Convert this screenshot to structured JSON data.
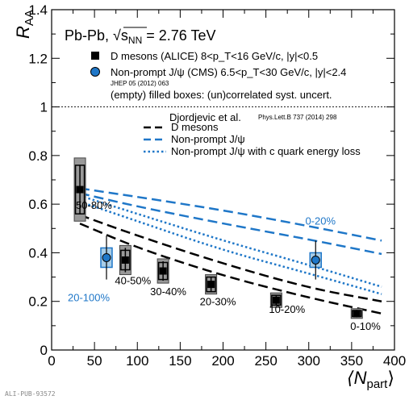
{
  "chart_data": {
    "type": "scatter",
    "xlabel_main": "⟨N",
    "xlabel_sub": "part",
    "xlabel_close": "⟩",
    "ylabel_main": "R",
    "ylabel_sub": "AA",
    "xlim": [
      0,
      400
    ],
    "ylim": [
      0,
      1.4
    ],
    "x_ticks": [
      0,
      50,
      100,
      150,
      200,
      250,
      300,
      350,
      400
    ],
    "y_ticks": [
      0,
      0.2,
      0.4,
      0.6,
      0.8,
      1,
      1.2,
      1.4
    ],
    "reference_line": 1,
    "system_label": "Pb-Pb, √s",
    "system_label_sub": "NN",
    "system_label_tail": " = 2.76 TeV",
    "legend_top": [
      {
        "marker": "square",
        "color": "#000000",
        "label": "D mesons (ALICE) 8<p_T<16 GeV/c, |y|<0.5"
      },
      {
        "marker": "circle",
        "color": "#1f77c8",
        "label": "Non-prompt J/ψ (CMS) 6.5<p_T<30 GeV/c, |y|<2.4"
      }
    ],
    "jhep_ref": "JHEP 05 (2012) 063",
    "boxes_note": "(empty) filled boxes: (un)correlated syst. uncert.",
    "model_title": "Djordjevic et al.",
    "model_ref": "Phys.Lett.B 737 (2014) 298",
    "legend_models": [
      {
        "style": "dashed",
        "color": "#000000",
        "label": "D mesons"
      },
      {
        "style": "dashed",
        "color": "#1f77c8",
        "label": "Non-prompt J/ψ"
      },
      {
        "style": "dotted",
        "color": "#1f77c8",
        "label": "Non-prompt J/ψ with c quark energy loss"
      }
    ],
    "series": [
      {
        "name": "D mesons (ALICE)",
        "color": "#000000",
        "points": [
          {
            "x": 33,
            "y": 0.66,
            "stat": 0.1,
            "syst": 0.1,
            "corr": 0.13,
            "label": "50-80%"
          },
          {
            "x": 86,
            "y": 0.37,
            "stat": 0.05,
            "syst": 0.04,
            "corr": 0.06,
            "label": "40-50%"
          },
          {
            "x": 130,
            "y": 0.325,
            "stat": 0.04,
            "syst": 0.035,
            "corr": 0.05,
            "label": "30-40%"
          },
          {
            "x": 186,
            "y": 0.27,
            "stat": 0.03,
            "syst": 0.03,
            "corr": 0.04,
            "label": "20-30%"
          },
          {
            "x": 262,
            "y": 0.205,
            "stat": 0.02,
            "syst": 0.02,
            "corr": 0.03,
            "label": "10-20%"
          },
          {
            "x": 356,
            "y": 0.15,
            "stat": 0.015,
            "syst": 0.012,
            "corr": 0.02,
            "label": "0-10%"
          }
        ]
      },
      {
        "name": "Non-prompt J/ψ (CMS)",
        "color": "#1f77c8",
        "points": [
          {
            "x": 64,
            "y": 0.38,
            "stat": 0.09,
            "syst": 0.04,
            "label": "20-100%"
          },
          {
            "x": 308,
            "y": 0.37,
            "stat": 0.08,
            "syst": 0.03,
            "label": "0-20%"
          }
        ]
      }
    ],
    "model_curves": [
      {
        "name": "D mesons",
        "style": "dashed",
        "color": "#000000",
        "upper": [
          [
            33,
            0.555
          ],
          [
            100,
            0.47
          ],
          [
            200,
            0.355
          ],
          [
            300,
            0.255
          ],
          [
            385,
            0.2
          ]
        ],
        "lower": [
          [
            33,
            0.52
          ],
          [
            100,
            0.42
          ],
          [
            200,
            0.305
          ],
          [
            300,
            0.215
          ],
          [
            385,
            0.15
          ]
        ]
      },
      {
        "name": "Non-prompt J/ψ",
        "style": "dashed",
        "color": "#1f77c8",
        "upper": [
          [
            33,
            0.665
          ],
          [
            100,
            0.63
          ],
          [
            200,
            0.575
          ],
          [
            300,
            0.51
          ],
          [
            385,
            0.45
          ]
        ],
        "lower": [
          [
            33,
            0.645
          ],
          [
            100,
            0.59
          ],
          [
            200,
            0.52
          ],
          [
            300,
            0.455
          ],
          [
            385,
            0.395
          ]
        ]
      },
      {
        "name": "Non-prompt J/ψ with c quark energy loss",
        "style": "dotted",
        "color": "#1f77c8",
        "upper": [
          [
            33,
            0.635
          ],
          [
            100,
            0.56
          ],
          [
            200,
            0.45
          ],
          [
            300,
            0.35
          ],
          [
            385,
            0.26
          ]
        ],
        "lower": [
          [
            33,
            0.61
          ],
          [
            100,
            0.53
          ],
          [
            200,
            0.41
          ],
          [
            300,
            0.315
          ],
          [
            385,
            0.23
          ]
        ]
      }
    ]
  },
  "footer": {
    "label": "ALI-PUB-93572"
  }
}
